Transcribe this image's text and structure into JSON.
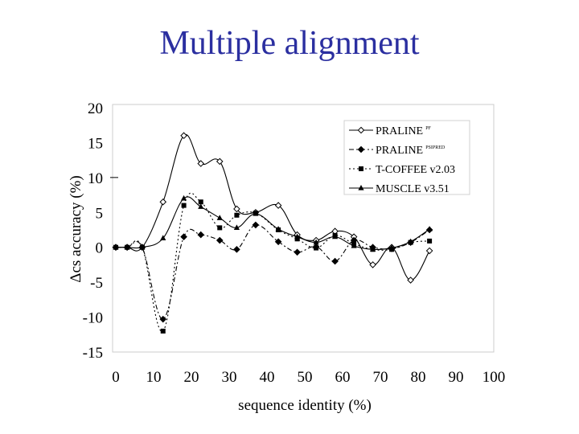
{
  "slide": {
    "title": "Multiple alignment"
  },
  "chart_data": {
    "type": "line",
    "xlabel": "sequence identity (%)",
    "ylabel": "Δcs accuracy (%)",
    "xlim": [
      0,
      100
    ],
    "ylim": [
      -15,
      20
    ],
    "xticks": [
      "0",
      "10",
      "20",
      "30",
      "40",
      "50",
      "60",
      "70",
      "80",
      "90",
      "100"
    ],
    "yticks": [
      "20",
      "15",
      "10",
      "5",
      "0",
      "-5",
      "-10",
      "-15"
    ],
    "legend_position": "top-right",
    "series": [
      {
        "name": "PRALINE",
        "superscript": "PF",
        "color": "#000000",
        "dash": "",
        "marker": "open-diamond",
        "x": [
          0,
          3,
          7,
          12.5,
          18,
          22.5,
          27.5,
          32,
          37,
          43,
          48,
          53,
          58,
          63,
          68,
          73,
          78,
          83
        ],
        "y": [
          0,
          0,
          0,
          6.5,
          16,
          12,
          12.3,
          5.5,
          5,
          6,
          1.8,
          1,
          2.3,
          1.5,
          -2.5,
          0,
          -4.7,
          -0.5
        ]
      },
      {
        "name": "PRALINE",
        "superscript": "PSIPRED",
        "color": "#000000",
        "dash": "6,3,2,3",
        "marker": "filled-diamond",
        "x": [
          0,
          3,
          7,
          12.5,
          18,
          22.5,
          27.5,
          32,
          37,
          43,
          48,
          53,
          58,
          63,
          68,
          73,
          78,
          83
        ],
        "y": [
          0,
          0,
          0,
          -10.3,
          1.5,
          1.8,
          1.0,
          -0.3,
          3.2,
          0.8,
          -0.7,
          0.1,
          -2,
          1,
          0,
          -0.2,
          0.7,
          2.5
        ]
      },
      {
        "name": "T-COFFEE v2.03",
        "color": "#000000",
        "dash": "2,3",
        "marker": "filled-square",
        "x": [
          0,
          3,
          7,
          12.5,
          18,
          22.5,
          27.5,
          32,
          37,
          43,
          48,
          53,
          58,
          63,
          68,
          73,
          78,
          83
        ],
        "y": [
          0,
          0,
          0,
          -12,
          6,
          6.5,
          2.8,
          4.6,
          4.9,
          2.5,
          1.2,
          -0.1,
          1.7,
          0.5,
          -0.3,
          -0.3,
          0.7,
          0.9
        ]
      },
      {
        "name": "MUSCLE v3.51",
        "color": "#000000",
        "dash": "",
        "marker": "filled-triangle",
        "x": [
          0,
          3,
          7,
          12.5,
          18,
          22.5,
          27.5,
          32,
          37,
          43,
          48,
          53,
          58,
          63,
          68,
          73,
          78,
          83
        ],
        "y": [
          0,
          0,
          0,
          1.3,
          7,
          5.8,
          4.2,
          2.8,
          4.8,
          2.6,
          1.5,
          0.7,
          1.5,
          0.2,
          -0.3,
          -0.1,
          0.8,
          2.6
        ]
      }
    ]
  }
}
